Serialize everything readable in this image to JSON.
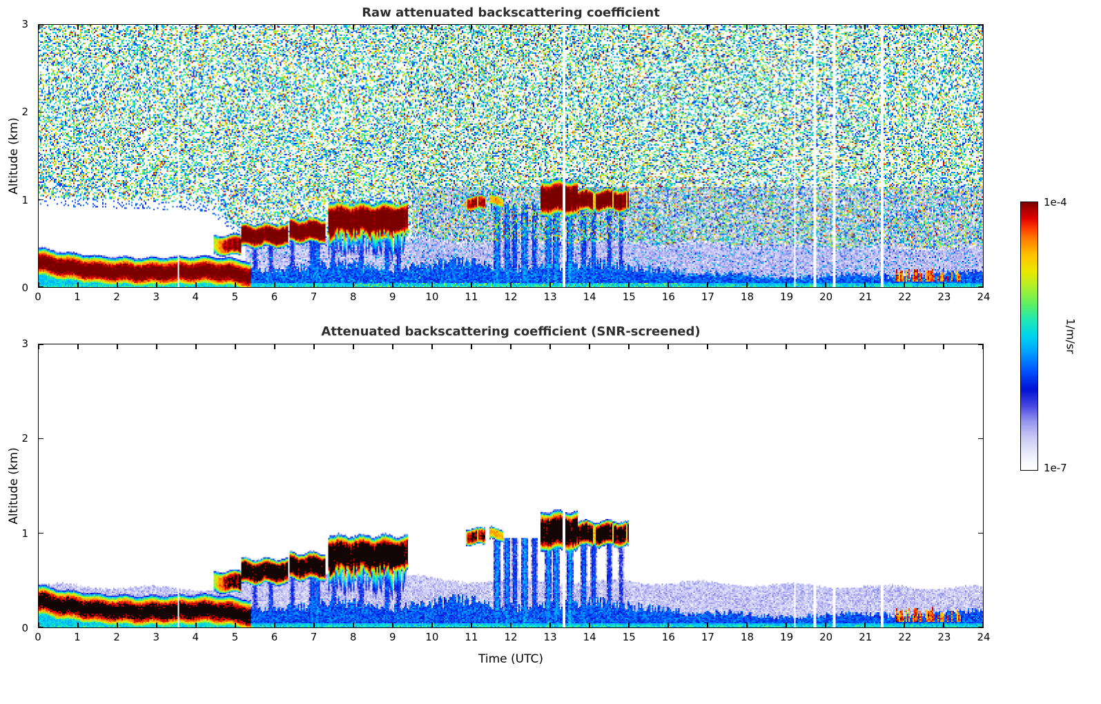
{
  "figure": {
    "background": "#ffffff",
    "description": "Two-panel ceilometer attenuated backscatter time-height heatmaps sharing one logarithmic color scale"
  },
  "colorbar": {
    "max_label": "1e-4",
    "min_label": "1e-7",
    "unit_label": "1/m/sr",
    "scale": "log10",
    "vmin": 1e-07,
    "vmax": 0.0001,
    "colormap": [
      [
        0.0,
        "#FFFFFF"
      ],
      [
        0.05,
        "#EFEFFC"
      ],
      [
        0.12,
        "#C9C9F5"
      ],
      [
        0.18,
        "#9595EE"
      ],
      [
        0.24,
        "#4444E2"
      ],
      [
        0.3,
        "#0012D4"
      ],
      [
        0.37,
        "#0055FF"
      ],
      [
        0.44,
        "#00A2FF"
      ],
      [
        0.5,
        "#00D5EE"
      ],
      [
        0.56,
        "#1FE8B4"
      ],
      [
        0.62,
        "#5FF05F"
      ],
      [
        0.68,
        "#AAF02E"
      ],
      [
        0.74,
        "#EAE800"
      ],
      [
        0.8,
        "#FFC400"
      ],
      [
        0.86,
        "#FF8000"
      ],
      [
        0.9,
        "#FF4000"
      ],
      [
        0.94,
        "#E10000"
      ],
      [
        0.97,
        "#B20000"
      ],
      [
        1.0,
        "#7A0000"
      ]
    ]
  },
  "chart_data": [
    {
      "type": "heatmap",
      "title": "Raw attenuated backscattering coefficient",
      "xlabel": "",
      "ylabel": "Altitude (km)",
      "xlim": [
        0,
        24
      ],
      "ylim": [
        0,
        3
      ],
      "xticks": [
        0,
        1,
        2,
        3,
        4,
        5,
        6,
        7,
        8,
        9,
        10,
        11,
        12,
        13,
        14,
        15,
        16,
        17,
        18,
        19,
        20,
        21,
        22,
        23,
        24
      ],
      "xticklabels": [
        "0",
        "1",
        "2",
        "3",
        "4",
        "5",
        "6",
        "7",
        "8",
        "9",
        "10",
        "11",
        "12",
        "13",
        "14",
        "15",
        "16",
        "17",
        "18",
        "19",
        "20",
        "21",
        "22",
        "23",
        "24"
      ],
      "yticks": [
        0,
        1,
        2,
        3
      ],
      "yticklabels": [
        "0",
        "1",
        "2",
        "3"
      ],
      "value_scale": {
        "vmin": 1e-07,
        "vmax": 0.0001,
        "scale": "log10",
        "units": "1/m/sr"
      },
      "noise_overlay": true,
      "scene_ref": "atmosphere"
    },
    {
      "type": "heatmap",
      "title": "Attenuated backscattering coefficient (SNR-screened)",
      "xlabel": "Time (UTC)",
      "ylabel": "Altitude (km)",
      "xlim": [
        0,
        24
      ],
      "ylim": [
        0,
        3
      ],
      "xticks": [
        0,
        1,
        2,
        3,
        4,
        5,
        6,
        7,
        8,
        9,
        10,
        11,
        12,
        13,
        14,
        15,
        16,
        17,
        18,
        19,
        20,
        21,
        22,
        23,
        24
      ],
      "xticklabels": [
        "0",
        "1",
        "2",
        "3",
        "4",
        "5",
        "6",
        "7",
        "8",
        "9",
        "10",
        "11",
        "12",
        "13",
        "14",
        "15",
        "16",
        "17",
        "18",
        "19",
        "20",
        "21",
        "22",
        "23",
        "24"
      ],
      "yticks": [
        0,
        1,
        2,
        3
      ],
      "yticklabels": [
        "0",
        "1",
        "2",
        "3"
      ],
      "value_scale": {
        "vmin": 1e-07,
        "vmax": 0.0001,
        "scale": "log10",
        "units": "1/m/sr"
      },
      "noise_overlay": false,
      "scene_ref": "atmosphere"
    }
  ],
  "atmosphere": {
    "units": "1/m/sr",
    "aerosol_layer": {
      "t_start": 0,
      "t_end": 5.38,
      "center_km": [
        [
          0,
          0.28
        ],
        [
          0.8,
          0.22
        ],
        [
          1.6,
          0.18
        ],
        [
          2.6,
          0.16
        ],
        [
          3.4,
          0.17
        ],
        [
          4.2,
          0.18
        ],
        [
          4.8,
          0.16
        ],
        [
          5.38,
          0.12
        ]
      ],
      "half_width_km": 0.095,
      "peak": 0.00013
    },
    "clouds": [
      {
        "t0": 4.45,
        "t1": 5.15,
        "base_km": 0.4,
        "top_km": 0.56,
        "peak": 0.00012,
        "ramp": true
      },
      {
        "t0": 5.15,
        "t1": 6.35,
        "base_km": 0.5,
        "top_km": 0.68,
        "peak": 0.00015
      },
      {
        "t0": 6.38,
        "t1": 7.28,
        "base_km": 0.55,
        "top_km": 0.74,
        "peak": 0.00015
      },
      {
        "t0": 7.35,
        "t1": 9.4,
        "base_km": 0.66,
        "top_km": 0.9,
        "peak": 0.00015,
        "fallstreaks": true
      },
      {
        "t0": 10.85,
        "t1": 11.35,
        "base_km": 0.9,
        "top_km": 1.02,
        "peak": 0.0001,
        "patchy": true
      },
      {
        "t0": 11.45,
        "t1": 11.8,
        "base_km": 0.94,
        "top_km": 1.03,
        "peak": 3e-05,
        "patchy": true
      },
      {
        "t0": 12.75,
        "t1": 13.7,
        "base_km": 0.88,
        "top_km": 1.16,
        "peak": 0.00016
      },
      {
        "t0": 13.7,
        "t1": 15.0,
        "base_km": 0.9,
        "top_km": 1.08,
        "peak": 0.00014,
        "patchy": true
      }
    ],
    "low_plume": {
      "t0": 21.8,
      "t1": 23.55,
      "base_km": 0.06,
      "top_km": 0.2,
      "peak": 8e-05
    },
    "haze_top_km": [
      [
        0,
        0.45
      ],
      [
        5,
        0.4
      ],
      [
        5.3,
        0.55
      ],
      [
        9.5,
        0.55
      ],
      [
        10,
        0.5
      ],
      [
        16,
        0.48
      ],
      [
        20,
        0.44
      ],
      [
        24,
        0.42
      ]
    ],
    "blue_top_km": [
      [
        0,
        0.1
      ],
      [
        5,
        0.1
      ],
      [
        5.3,
        0.2
      ],
      [
        9.5,
        0.24
      ],
      [
        16,
        0.22
      ],
      [
        16.5,
        0.13
      ],
      [
        21,
        0.12
      ],
      [
        24,
        0.16
      ]
    ],
    "precip_streaks": [
      [
        5.5,
        0.35
      ],
      [
        5.9,
        0.4
      ],
      [
        6.45,
        0.35
      ],
      [
        6.95,
        0.55
      ],
      [
        7.08,
        0.7
      ],
      [
        7.5,
        0.4
      ],
      [
        8.2,
        0.45
      ],
      [
        8.85,
        0.5
      ],
      [
        9.15,
        0.4
      ],
      [
        11.65,
        0.85
      ],
      [
        11.9,
        0.7
      ],
      [
        12.1,
        0.5
      ],
      [
        12.35,
        0.9
      ],
      [
        12.6,
        0.5
      ],
      [
        12.95,
        0.85
      ],
      [
        13.15,
        0.9
      ],
      [
        13.5,
        0.9
      ],
      [
        13.85,
        0.6
      ],
      [
        14.1,
        0.5
      ],
      [
        14.5,
        0.4
      ],
      [
        14.8,
        0.3
      ]
    ],
    "data_gaps_utc": [
      3.55,
      13.35,
      19.22,
      19.72,
      20.22,
      21.45
    ]
  }
}
